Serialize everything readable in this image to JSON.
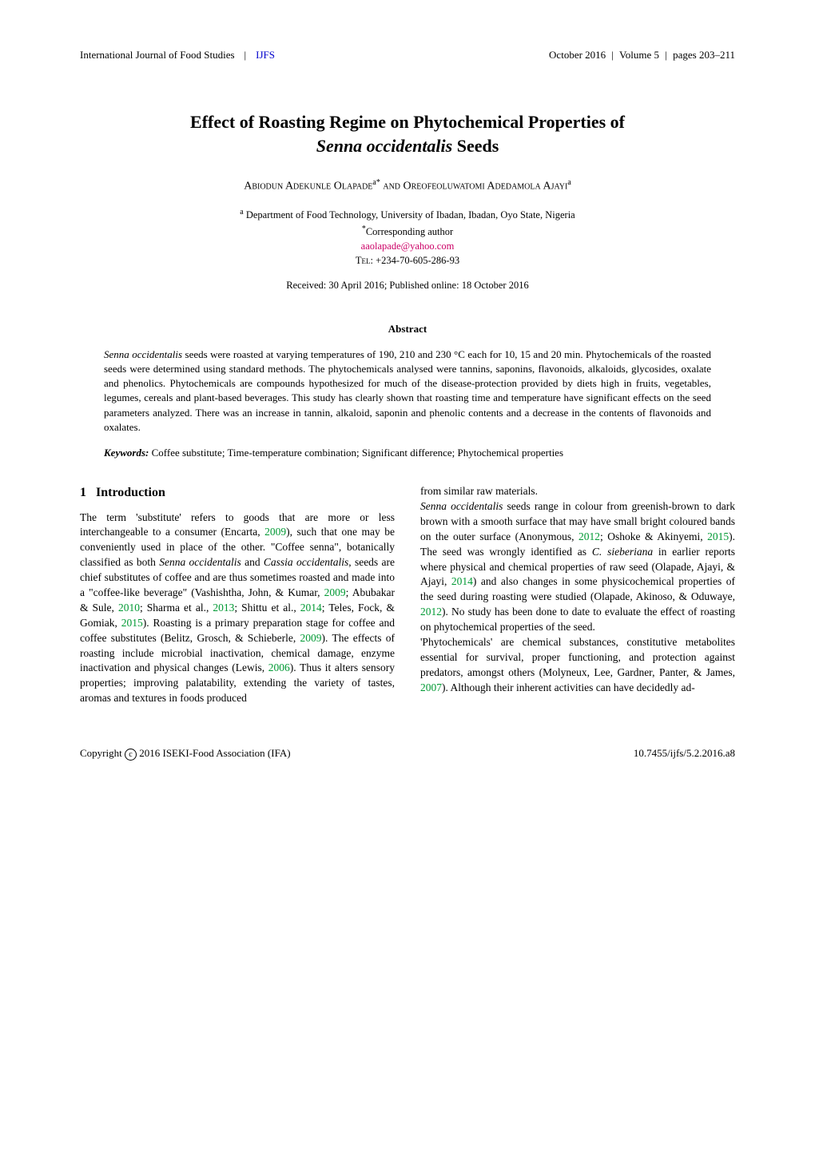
{
  "header": {
    "journal": "International Journal of Food Studies",
    "journal_abbr": "IJFS",
    "date": "October 2016",
    "volume": "Volume 5",
    "pages": "pages 203–211"
  },
  "title": {
    "line1": "Effect of Roasting Regime on Phytochemical Properties of",
    "line2_italic": "Senna occidentalis",
    "line2_rest": " Seeds"
  },
  "authors": "Abiodun Adekunle Olapade",
  "authors_sup1": "a*",
  "authors_and": " and ",
  "authors2": "Oreofeoluwatomi Adedamola Ajayi",
  "authors_sup2": "a",
  "affiliation_sup": "a",
  "affiliation": " Department of Food Technology, University of Ibadan, Ibadan, Oyo State, Nigeria",
  "corresp_sup": "*",
  "corresp": "Corresponding author",
  "email": "aaolapade@yahoo.com",
  "tel": "Tel: +234-70-605-286-93",
  "received": "Received: 30 April 2016; Published online: 18 October 2016",
  "abstract": {
    "heading": "Abstract",
    "body_parts": [
      {
        "italic": true,
        "text": "Senna occidentalis"
      },
      {
        "italic": false,
        "text": " seeds were roasted at varying temperatures of 190, 210 and 230 °C each for 10, 15 and 20 min. Phytochemicals of the roasted seeds were determined using standard methods. The phytochemicals analysed were tannins, saponins, flavonoids, alkaloids, glycosides, oxalate and phenolics. Phytochemicals are compounds hypothesized for much of the disease-protection provided by diets high in fruits, vegetables, legumes, cereals and plant-based beverages. This study has clearly shown that roasting time and temperature have significant effects on the seed parameters analyzed. There was an increase in tannin, alkaloid, saponin and phenolic contents and a decrease in the contents of flavonoids and oxalates."
      }
    ],
    "keywords_label": "Keywords:",
    "keywords": " Coffee substitute; Time-temperature combination; Significant difference; Phytochemical properties"
  },
  "section1": {
    "num": "1",
    "title": "Introduction"
  },
  "col_left": "The term 'substitute' refers to goods that are more or less interchangeable to a consumer (Encarta, <span class=\"cite-year\">2009</span>), such that one may be conveniently used in place of the other. \"Coffee senna\", botanically classified as both <span class=\"ital\">Senna occidentalis</span> and <span class=\"ital\">Cassia occidentalis</span>, seeds are chief substitutes of coffee and are thus sometimes roasted and made into a \"coffee-like beverage\" (Vashishtha, John, & Kumar, <span class=\"cite-year\">2009</span>; Abubakar & Sule, <span class=\"cite-year\">2010</span>; Sharma et al., <span class=\"cite-year\">2013</span>; Shittu et al., <span class=\"cite-year\">2014</span>; Teles, Fock, & Gomiak, <span class=\"cite-year\">2015</span>). Roasting is a primary preparation stage for coffee and coffee substitutes (Belitz, Grosch, & Schieberle, <span class=\"cite-year\">2009</span>). The effects of roasting include microbial inactivation, chemical damage, enzyme inactivation and physical changes (Lewis, <span class=\"cite-year\">2006</span>). Thus it alters sensory properties; improving palatability, extending the variety of tastes, aromas and textures in foods produced",
  "col_right": "from similar raw materials.<br><span class=\"ital\">Senna occidentalis</span> seeds range in colour from greenish-brown to dark brown with a smooth surface that may have small bright coloured bands on the outer surface (Anonymous, <span class=\"cite-year\">2012</span>; Oshoke & Akinyemi, <span class=\"cite-year\">2015</span>). The seed was wrongly identified as <span class=\"ital\">C. sieberiana</span> in earlier reports where physical and chemical properties of raw seed (Olapade, Ajayi, & Ajayi, <span class=\"cite-year\">2014</span>) and also changes in some physicochemical properties of the seed during roasting were studied (Olapade, Akinoso, & Oduwaye, <span class=\"cite-year\">2012</span>). No study has been done to date to evaluate the effect of roasting on phytochemical properties of the seed.<br>'Phytochemicals' are chemical substances, constitutive metabolites essential for survival, proper functioning, and protection against predators, amongst others (Molyneux, Lee, Gardner, Panter, & James, <span class=\"cite-year\">2007</span>). Although their inherent activities can have decidedly ad-",
  "footer": {
    "copyright": "Copyright ",
    "copyright_rest": "2016 ISEKI-Food Association (IFA)",
    "doi": "10.7455/ijfs/5.2.2016.a8"
  }
}
